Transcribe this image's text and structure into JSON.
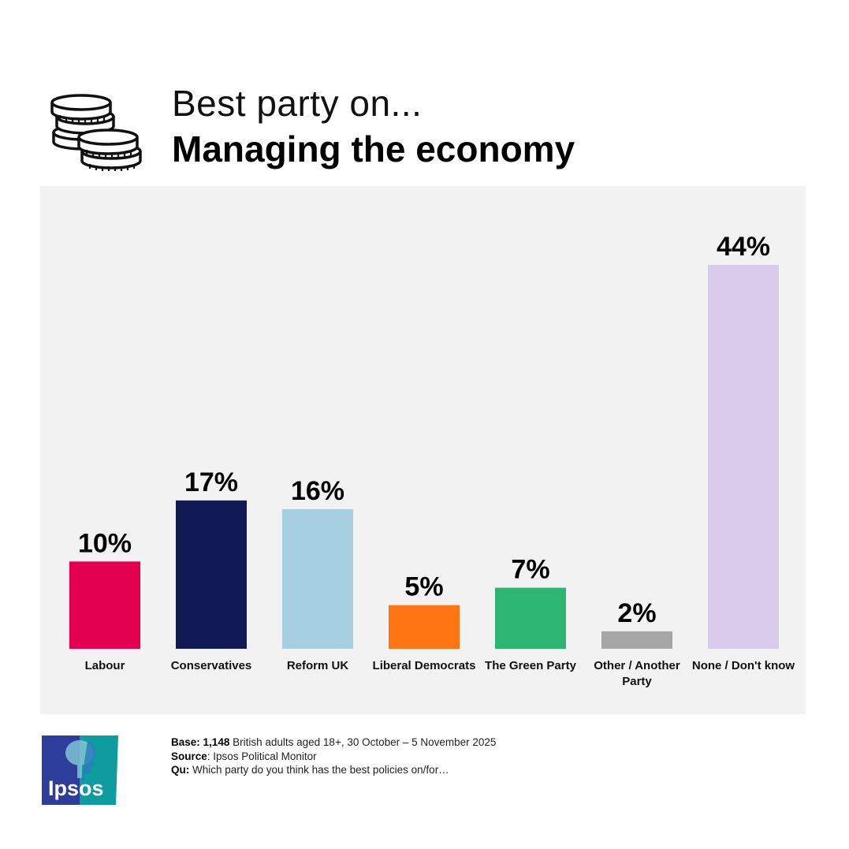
{
  "header": {
    "pre_title": "Best party on...",
    "title": "Managing the economy",
    "icon": "coins-icon"
  },
  "chart_data": {
    "type": "bar",
    "title": "Managing the economy",
    "categories": [
      "Labour",
      "Conservatives",
      "Reform UK",
      "Liberal Democrats",
      "The Green Party",
      "Other / Another Party",
      "None / Don't know"
    ],
    "label_lines": [
      [
        "Labour"
      ],
      [
        "Conservatives"
      ],
      [
        "Reform UK"
      ],
      [
        "Liberal Democrats"
      ],
      [
        "The Green Party"
      ],
      [
        "Other / Another",
        "Party"
      ],
      [
        "None / Don't know"
      ]
    ],
    "values": [
      10,
      17,
      16,
      5,
      7,
      2,
      44
    ],
    "value_labels": [
      "10%",
      "17%",
      "16%",
      "5%",
      "7%",
      "2%",
      "44%"
    ],
    "colors": [
      "#e4004f",
      "#121a56",
      "#a7cfe2",
      "#ff7514",
      "#2db672",
      "#a6a6a6",
      "#d9cbec"
    ],
    "xlabel": "",
    "ylabel": "",
    "ylim": [
      0,
      44
    ],
    "grid": false
  },
  "footer": {
    "base_label": "Base:",
    "base_value": "1,148",
    "base_text": "British adults aged 18+,  30 October – 5 November 2025",
    "source_label": "Source",
    "source_text": ": Ipsos Political Monitor",
    "qu_label": "Qu:",
    "qu_text": "Which party do you think has the best policies on/for…"
  },
  "logo": {
    "text": "Ipsos",
    "colors": [
      "#2e3c9a",
      "#0f9ca0"
    ]
  }
}
